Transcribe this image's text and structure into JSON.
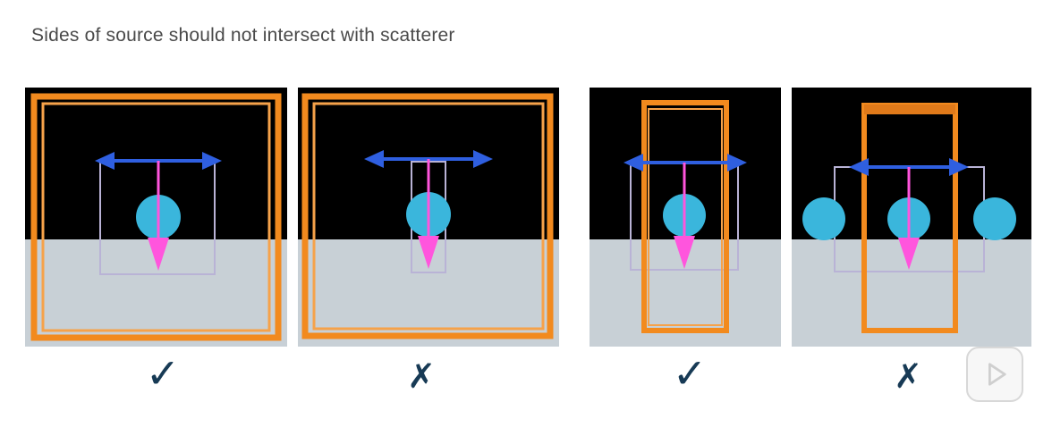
{
  "caption": "Sides of source should not intersect with scatterer",
  "colors": {
    "background_top": "#000000",
    "background_bottom": "#c8d0d6",
    "source_frame": "#f28a1e",
    "scatterer": "#3ab6dc",
    "scatterer_box": "#b9b3d6",
    "direction_arrow": "#2f5fe0",
    "propagation_arrow": "#ff55dd",
    "mark_color": "#173a55"
  },
  "panels": [
    {
      "id": "panel-1",
      "verdict": "correct",
      "mark": "✓"
    },
    {
      "id": "panel-2",
      "verdict": "incorrect",
      "mark": "✗"
    },
    {
      "id": "panel-3",
      "verdict": "correct",
      "mark": "✓"
    },
    {
      "id": "panel-4",
      "verdict": "incorrect",
      "mark": "✗"
    }
  ],
  "player": {
    "icon": "play-icon"
  }
}
